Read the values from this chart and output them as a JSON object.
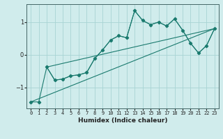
{
  "xlabel": "Humidex (Indice chaleur)",
  "bg_color": "#d0ecec",
  "grid_color": "#a8d4d4",
  "line_color": "#1a7a6e",
  "xlim": [
    -0.5,
    23.5
  ],
  "ylim": [
    -1.65,
    1.55
  ],
  "yticks": [
    -1,
    0,
    1
  ],
  "xtick_labels": [
    "0",
    "1",
    "2",
    "3",
    "4",
    "5",
    "6",
    "7",
    "8",
    "9",
    "10",
    "11",
    "12",
    "13",
    "14",
    "15",
    "16",
    "17",
    "18",
    "19",
    "20",
    "21",
    "22",
    "23"
  ],
  "xtick_vals": [
    0,
    1,
    2,
    3,
    4,
    5,
    6,
    7,
    8,
    9,
    10,
    11,
    12,
    13,
    14,
    15,
    16,
    17,
    18,
    19,
    20,
    21,
    22,
    23
  ],
  "series1_x": [
    0,
    1,
    2,
    3,
    4,
    5,
    6,
    7,
    8,
    9,
    10,
    11,
    12,
    13,
    14,
    15,
    16,
    17,
    18,
    19,
    20,
    21,
    22,
    23
  ],
  "series1_y": [
    -1.45,
    -1.45,
    -0.38,
    -0.78,
    -0.75,
    -0.65,
    -0.62,
    -0.55,
    -0.12,
    0.15,
    0.45,
    0.58,
    0.52,
    1.35,
    1.05,
    0.92,
    1.0,
    0.88,
    1.1,
    0.75,
    0.35,
    0.05,
    0.28,
    0.8
  ],
  "series2_x": [
    0,
    23
  ],
  "series2_y": [
    -1.45,
    0.8
  ],
  "series3_x": [
    2,
    3,
    4,
    5,
    6,
    7,
    8,
    9,
    10,
    11,
    12,
    13,
    14,
    15,
    16,
    17,
    18,
    19,
    20,
    21,
    22,
    23
  ],
  "series3_y": [
    -0.38,
    -0.78,
    -0.75,
    -0.65,
    -0.62,
    -0.55,
    -0.12,
    0.15,
    0.45,
    0.58,
    0.52,
    1.35,
    1.05,
    0.92,
    1.0,
    0.88,
    1.1,
    0.75,
    0.35,
    0.05,
    0.28,
    0.8
  ],
  "series4_x": [
    2,
    23
  ],
  "series4_y": [
    -0.38,
    0.8
  ]
}
